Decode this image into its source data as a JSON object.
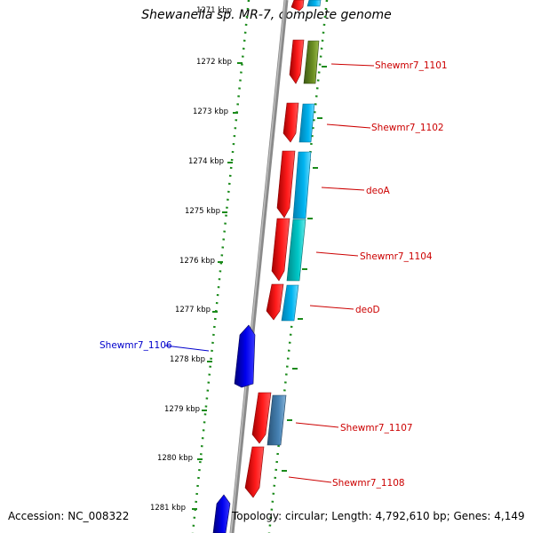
{
  "title": "Shewanella sp. MR-7, complete genome",
  "footer": {
    "accession": "Accession: NC_008322",
    "info": "Topology: circular; Length: 4,792,610 bp; Genes: 4,149"
  },
  "colors": {
    "forward_cds": "#ff0000",
    "reverse_cds_blue": "#0000ee",
    "backbone": "#808080",
    "scale_dots": "#1a8a1a",
    "label_forward": "#cc0000",
    "label_reverse": "#0000cc"
  },
  "scale_labels": [
    "1271 kbp",
    "1272 kbp",
    "1273 kbp",
    "1274 kbp",
    "1275 kbp",
    "1276 kbp",
    "1277 kbp",
    "1278 kbp",
    "1279 kbp",
    "1280 kbp",
    "1281 kbp"
  ],
  "gene_labels": [
    {
      "name": "Shewmr7_1101",
      "strand": "forward"
    },
    {
      "name": "Shewmr7_1102",
      "strand": "forward"
    },
    {
      "name": "deoA",
      "strand": "forward"
    },
    {
      "name": "Shewmr7_1104",
      "strand": "forward"
    },
    {
      "name": "deoD",
      "strand": "forward"
    },
    {
      "name": "Shewmr7_1106",
      "strand": "reverse"
    },
    {
      "name": "Shewmr7_1107",
      "strand": "forward"
    },
    {
      "name": "Shewmr7_1108",
      "strand": "forward"
    }
  ],
  "features": [
    {
      "track": "cds",
      "strand": "forward",
      "color": "#ff0000"
    },
    {
      "track": "cds",
      "strand": "forward",
      "color": "#ff0000"
    },
    {
      "track": "cds",
      "strand": "forward",
      "color": "#ff0000"
    },
    {
      "track": "cds",
      "strand": "forward",
      "color": "#ff0000"
    },
    {
      "track": "cds",
      "strand": "forward",
      "color": "#ff0000"
    },
    {
      "track": "cds",
      "strand": "forward",
      "color": "#ff0000"
    },
    {
      "track": "cds",
      "strand": "forward",
      "color": "#ff0000"
    },
    {
      "track": "cds",
      "strand": "forward",
      "color": "#ff0000"
    },
    {
      "track": "cds",
      "strand": "reverse",
      "color": "#0000ee"
    },
    {
      "track": "cds",
      "strand": "reverse",
      "color": "#0000ee"
    },
    {
      "track": "cog",
      "color": "#00b4f0"
    },
    {
      "track": "cog",
      "color": "#6b8e23"
    },
    {
      "track": "cog",
      "color": "#00b4f0"
    },
    {
      "track": "cog",
      "color": "#00b4f0"
    },
    {
      "track": "cog",
      "color": "#00c8c8"
    },
    {
      "track": "cog",
      "color": "#00b4f0"
    },
    {
      "track": "cog",
      "color": "#4682b4"
    }
  ]
}
